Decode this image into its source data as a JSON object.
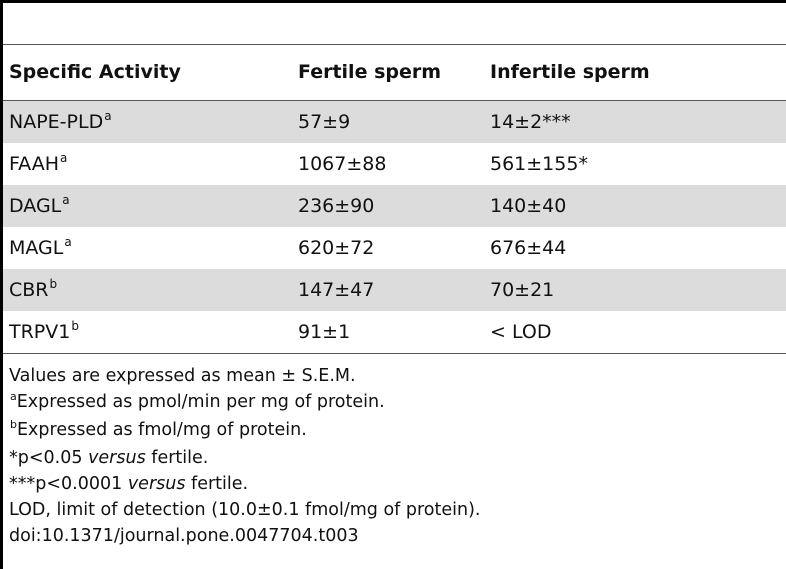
{
  "table": {
    "columns": [
      "Specific Activity",
      "Fertile sperm",
      "Infertile sperm"
    ],
    "rows": [
      {
        "activity": "NAPE-PLD",
        "sup": "a",
        "fertile": "57±9",
        "infertile": "14±2***"
      },
      {
        "activity": "FAAH",
        "sup": "a",
        "fertile": "1067±88",
        "infertile": "561±155*"
      },
      {
        "activity": "DAGL",
        "sup": "a",
        "fertile": "236±90",
        "infertile": "140±40"
      },
      {
        "activity": "MAGL",
        "sup": "a",
        "fertile": "620±72",
        "infertile": "676±44"
      },
      {
        "activity": "CBR",
        "sup": "b",
        "fertile": "147±47",
        "infertile": "70±21"
      },
      {
        "activity": "TRPV1",
        "sup": "b",
        "fertile": "91±1",
        "infertile": "< LOD"
      }
    ]
  },
  "notes": {
    "values": "Values are expressed as mean ± S.E.M.",
    "note_a_sup": "a",
    "note_a": "Expressed as pmol/min per mg of protein.",
    "note_b_sup": "b",
    "note_b": "Expressed as fmol/mg of protein.",
    "p005_prefix": "*p<0.05 ",
    "p005_italic": "versus",
    "p005_suffix": " fertile.",
    "p00001_prefix": "***p<0.0001 ",
    "p00001_italic": "versus",
    "p00001_suffix": " fertile.",
    "lod": "LOD, limit of detection (10.0±0.1 fmol/mg of protein).",
    "doi": "doi:10.1371/journal.pone.0047704.t003"
  }
}
